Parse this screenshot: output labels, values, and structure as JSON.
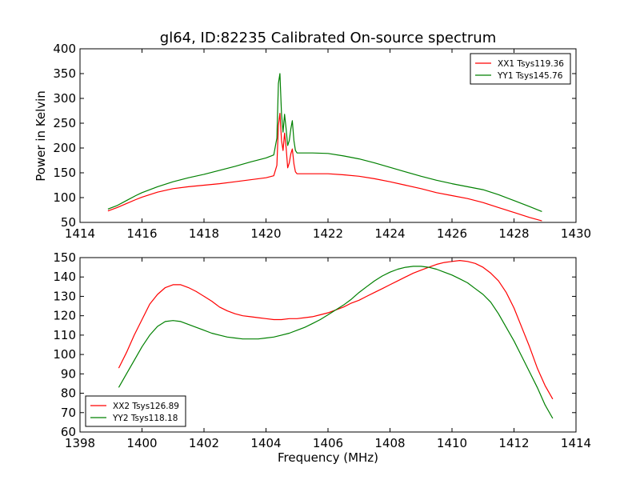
{
  "title": "gl64, ID:82235 Calibrated On-source spectrum",
  "colors": {
    "red": "#ff0000",
    "green": "#008000",
    "axes": "#000000",
    "background": "#ffffff"
  },
  "chart_data": [
    {
      "type": "line",
      "panel": "top",
      "ylabel": "Power in Kelvin",
      "xlabel": "",
      "xlim": [
        1414,
        1430
      ],
      "ylim": [
        50,
        400
      ],
      "xticks": [
        1414,
        1416,
        1418,
        1420,
        1422,
        1424,
        1426,
        1428,
        1430
      ],
      "yticks": [
        50,
        100,
        150,
        200,
        250,
        300,
        350,
        400
      ],
      "legend_position": "top-right",
      "series": [
        {
          "name": "XX1 Tsys119.36",
          "color": "#ff0000",
          "x": [
            1414.9,
            1415.2,
            1415.5,
            1415.8,
            1416.0,
            1416.5,
            1417.0,
            1417.5,
            1418.0,
            1418.5,
            1419.0,
            1419.5,
            1420.0,
            1420.25,
            1420.35,
            1420.4,
            1420.45,
            1420.5,
            1420.55,
            1420.6,
            1420.65,
            1420.7,
            1420.75,
            1420.8,
            1420.85,
            1420.9,
            1420.95,
            1421.0,
            1421.5,
            1422.0,
            1422.5,
            1423.0,
            1423.5,
            1424.0,
            1424.5,
            1425.0,
            1425.5,
            1426.0,
            1426.5,
            1427.0,
            1427.5,
            1428.0,
            1428.5,
            1428.9
          ],
          "y": [
            73,
            80,
            88,
            96,
            101,
            111,
            118,
            122,
            125,
            128,
            132,
            136,
            140,
            144,
            165,
            245,
            270,
            215,
            195,
            230,
            200,
            160,
            170,
            188,
            198,
            168,
            152,
            148,
            148,
            148,
            146,
            143,
            138,
            132,
            125,
            118,
            110,
            104,
            98,
            90,
            80,
            70,
            60,
            53
          ]
        },
        {
          "name": "YY1 Tsys145.76",
          "color": "#008000",
          "x": [
            1414.9,
            1415.2,
            1415.5,
            1415.8,
            1416.0,
            1416.5,
            1417.0,
            1417.5,
            1418.0,
            1418.5,
            1419.0,
            1419.5,
            1420.0,
            1420.25,
            1420.35,
            1420.4,
            1420.45,
            1420.5,
            1420.55,
            1420.6,
            1420.65,
            1420.7,
            1420.75,
            1420.8,
            1420.85,
            1420.9,
            1420.95,
            1421.0,
            1421.5,
            1422.0,
            1422.5,
            1423.0,
            1423.5,
            1424.0,
            1424.5,
            1425.0,
            1425.5,
            1426.0,
            1426.5,
            1427.0,
            1427.5,
            1428.0,
            1428.5,
            1428.9
          ],
          "y": [
            77,
            84,
            94,
            104,
            110,
            122,
            132,
            140,
            147,
            155,
            163,
            172,
            180,
            186,
            220,
            330,
            350,
            268,
            232,
            268,
            238,
            205,
            215,
            238,
            255,
            215,
            195,
            190,
            190,
            189,
            184,
            178,
            170,
            161,
            152,
            143,
            135,
            128,
            122,
            116,
            106,
            94,
            82,
            72
          ]
        }
      ]
    },
    {
      "type": "line",
      "panel": "bottom",
      "ylabel": "",
      "xlabel": "Frequency (MHz)",
      "xlim": [
        1398,
        1414
      ],
      "ylim": [
        60,
        150
      ],
      "xticks": [
        1398,
        1400,
        1402,
        1404,
        1406,
        1408,
        1410,
        1412,
        1414
      ],
      "yticks": [
        60,
        70,
        80,
        90,
        100,
        110,
        120,
        130,
        140,
        150
      ],
      "legend_position": "bottom-left",
      "series": [
        {
          "name": "XX2 Tsys126.89",
          "color": "#ff0000",
          "x": [
            1399.25,
            1399.5,
            1399.75,
            1400.0,
            1400.25,
            1400.5,
            1400.75,
            1401.0,
            1401.25,
            1401.5,
            1401.75,
            1402.0,
            1402.25,
            1402.5,
            1402.75,
            1403.0,
            1403.25,
            1403.5,
            1403.75,
            1404.0,
            1404.25,
            1404.5,
            1404.75,
            1405.0,
            1405.25,
            1405.5,
            1405.75,
            1406.0,
            1406.25,
            1406.5,
            1406.75,
            1407.0,
            1407.25,
            1407.5,
            1407.75,
            1408.0,
            1408.25,
            1408.5,
            1408.75,
            1409.0,
            1409.25,
            1409.5,
            1409.75,
            1410.0,
            1410.25,
            1410.5,
            1410.75,
            1411.0,
            1411.25,
            1411.5,
            1411.75,
            1412.0,
            1412.25,
            1412.5,
            1412.75,
            1413.0,
            1413.25
          ],
          "y": [
            93,
            101,
            110,
            118,
            126,
            131,
            134.5,
            136,
            136,
            134.5,
            132.5,
            130,
            127.5,
            124.5,
            122.5,
            121,
            120,
            119.5,
            119,
            118.5,
            118,
            118,
            118.5,
            118.5,
            119,
            119.5,
            120.5,
            121.5,
            123,
            124.5,
            126.5,
            128,
            130,
            132,
            134,
            136,
            138,
            140,
            142,
            143.5,
            145,
            146.5,
            147.5,
            148,
            148.5,
            148,
            147,
            145,
            142,
            138,
            132,
            124,
            114,
            104,
            93,
            84,
            77
          ]
        },
        {
          "name": "YY2 Tsys118.18",
          "color": "#008000",
          "x": [
            1399.25,
            1399.5,
            1399.75,
            1400.0,
            1400.25,
            1400.5,
            1400.75,
            1401.0,
            1401.25,
            1401.5,
            1401.75,
            1402.0,
            1402.25,
            1402.5,
            1402.75,
            1403.0,
            1403.25,
            1403.5,
            1403.75,
            1404.0,
            1404.25,
            1404.5,
            1404.75,
            1405.0,
            1405.25,
            1405.5,
            1405.75,
            1406.0,
            1406.25,
            1406.5,
            1406.75,
            1407.0,
            1407.25,
            1407.5,
            1407.75,
            1408.0,
            1408.25,
            1408.5,
            1408.75,
            1409.0,
            1409.25,
            1409.5,
            1409.75,
            1410.0,
            1410.25,
            1410.5,
            1410.75,
            1411.0,
            1411.25,
            1411.5,
            1411.75,
            1412.0,
            1412.25,
            1412.5,
            1412.75,
            1413.0,
            1413.25
          ],
          "y": [
            83,
            90,
            97,
            104,
            110,
            114.5,
            117,
            117.5,
            117,
            115.5,
            114,
            112.5,
            111,
            110,
            109,
            108.5,
            108,
            108,
            108,
            108.5,
            109,
            110,
            111,
            112.5,
            114,
            116,
            118,
            120.5,
            123,
            125.5,
            128.5,
            132,
            135,
            138,
            140.5,
            142.5,
            144,
            145,
            145.5,
            145.5,
            145,
            144,
            142.5,
            141,
            139,
            137,
            134,
            131,
            127,
            121,
            114,
            107,
            99,
            91,
            83,
            74,
            67
          ]
        }
      ]
    }
  ]
}
